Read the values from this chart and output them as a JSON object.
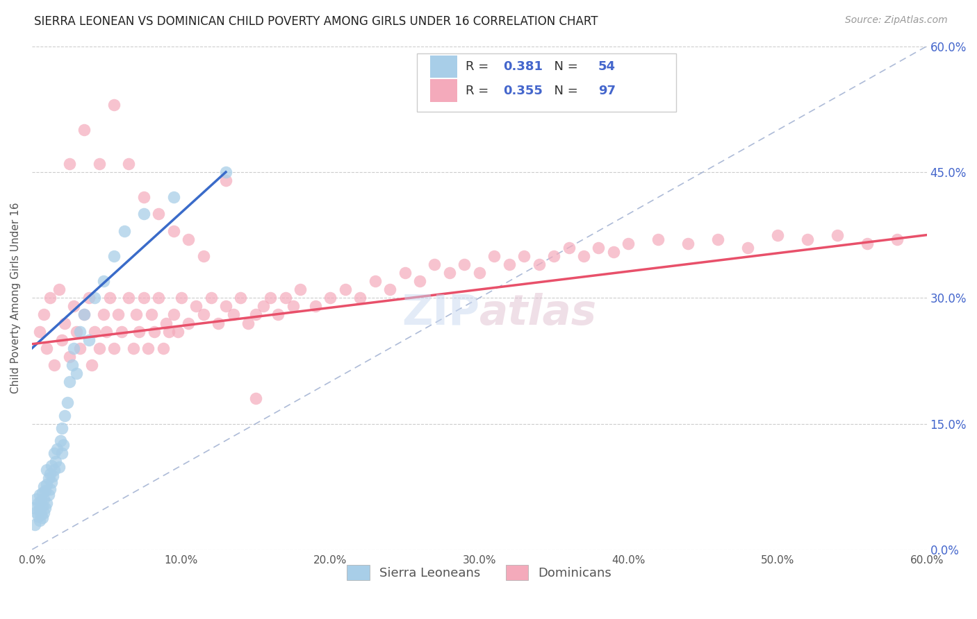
{
  "title": "SIERRA LEONEAN VS DOMINICAN CHILD POVERTY AMONG GIRLS UNDER 16 CORRELATION CHART",
  "source": "Source: ZipAtlas.com",
  "ylabel": "Child Poverty Among Girls Under 16",
  "xlim": [
    0,
    0.6
  ],
  "ylim": [
    0,
    0.6
  ],
  "xticks": [
    0.0,
    0.1,
    0.2,
    0.3,
    0.4,
    0.5,
    0.6
  ],
  "yticks": [
    0.0,
    0.15,
    0.3,
    0.45,
    0.6
  ],
  "blue_R": "0.381",
  "blue_N": "54",
  "pink_R": "0.355",
  "pink_N": "97",
  "blue_color": "#A8CEE8",
  "pink_color": "#F4AABB",
  "blue_line_color": "#3A6BC9",
  "pink_line_color": "#E8506A",
  "diag_line_color": "#99AACE",
  "background_color": "#FFFFFF",
  "watermark": "ZIPatlas",
  "right_tick_color": "#4466CC",
  "blue_scatter_x": [
    0.001,
    0.002,
    0.003,
    0.003,
    0.004,
    0.004,
    0.005,
    0.005,
    0.005,
    0.006,
    0.006,
    0.007,
    0.007,
    0.007,
    0.008,
    0.008,
    0.008,
    0.009,
    0.009,
    0.01,
    0.01,
    0.01,
    0.011,
    0.011,
    0.012,
    0.012,
    0.013,
    0.013,
    0.014,
    0.015,
    0.015,
    0.016,
    0.017,
    0.018,
    0.019,
    0.02,
    0.02,
    0.021,
    0.022,
    0.024,
    0.025,
    0.027,
    0.028,
    0.03,
    0.032,
    0.035,
    0.038,
    0.042,
    0.048,
    0.055,
    0.062,
    0.075,
    0.095,
    0.13
  ],
  "blue_scatter_y": [
    0.05,
    0.03,
    0.045,
    0.06,
    0.04,
    0.055,
    0.035,
    0.048,
    0.065,
    0.042,
    0.058,
    0.038,
    0.052,
    0.068,
    0.044,
    0.06,
    0.075,
    0.05,
    0.07,
    0.055,
    0.078,
    0.095,
    0.065,
    0.085,
    0.072,
    0.09,
    0.08,
    0.1,
    0.088,
    0.095,
    0.115,
    0.105,
    0.12,
    0.098,
    0.13,
    0.115,
    0.145,
    0.125,
    0.16,
    0.175,
    0.2,
    0.22,
    0.24,
    0.21,
    0.26,
    0.28,
    0.25,
    0.3,
    0.32,
    0.35,
    0.38,
    0.4,
    0.42,
    0.45
  ],
  "pink_scatter_x": [
    0.005,
    0.008,
    0.01,
    0.012,
    0.015,
    0.018,
    0.02,
    0.022,
    0.025,
    0.028,
    0.03,
    0.032,
    0.035,
    0.038,
    0.04,
    0.042,
    0.045,
    0.048,
    0.05,
    0.052,
    0.055,
    0.058,
    0.06,
    0.065,
    0.068,
    0.07,
    0.072,
    0.075,
    0.078,
    0.08,
    0.082,
    0.085,
    0.088,
    0.09,
    0.092,
    0.095,
    0.098,
    0.1,
    0.105,
    0.11,
    0.115,
    0.12,
    0.125,
    0.13,
    0.135,
    0.14,
    0.145,
    0.15,
    0.155,
    0.16,
    0.165,
    0.17,
    0.175,
    0.18,
    0.19,
    0.2,
    0.21,
    0.22,
    0.23,
    0.24,
    0.25,
    0.26,
    0.27,
    0.28,
    0.29,
    0.3,
    0.31,
    0.32,
    0.33,
    0.34,
    0.35,
    0.36,
    0.37,
    0.38,
    0.39,
    0.4,
    0.42,
    0.44,
    0.46,
    0.48,
    0.5,
    0.52,
    0.54,
    0.56,
    0.58,
    0.025,
    0.035,
    0.045,
    0.055,
    0.065,
    0.075,
    0.085,
    0.095,
    0.105,
    0.115,
    0.13,
    0.15
  ],
  "pink_scatter_y": [
    0.26,
    0.28,
    0.24,
    0.3,
    0.22,
    0.31,
    0.25,
    0.27,
    0.23,
    0.29,
    0.26,
    0.24,
    0.28,
    0.3,
    0.22,
    0.26,
    0.24,
    0.28,
    0.26,
    0.3,
    0.24,
    0.28,
    0.26,
    0.3,
    0.24,
    0.28,
    0.26,
    0.3,
    0.24,
    0.28,
    0.26,
    0.3,
    0.24,
    0.27,
    0.26,
    0.28,
    0.26,
    0.3,
    0.27,
    0.29,
    0.28,
    0.3,
    0.27,
    0.29,
    0.28,
    0.3,
    0.27,
    0.28,
    0.29,
    0.3,
    0.28,
    0.3,
    0.29,
    0.31,
    0.29,
    0.3,
    0.31,
    0.3,
    0.32,
    0.31,
    0.33,
    0.32,
    0.34,
    0.33,
    0.34,
    0.33,
    0.35,
    0.34,
    0.35,
    0.34,
    0.35,
    0.36,
    0.35,
    0.36,
    0.355,
    0.365,
    0.37,
    0.365,
    0.37,
    0.36,
    0.375,
    0.37,
    0.375,
    0.365,
    0.37,
    0.46,
    0.5,
    0.46,
    0.53,
    0.46,
    0.42,
    0.4,
    0.38,
    0.37,
    0.35,
    0.44,
    0.18
  ]
}
